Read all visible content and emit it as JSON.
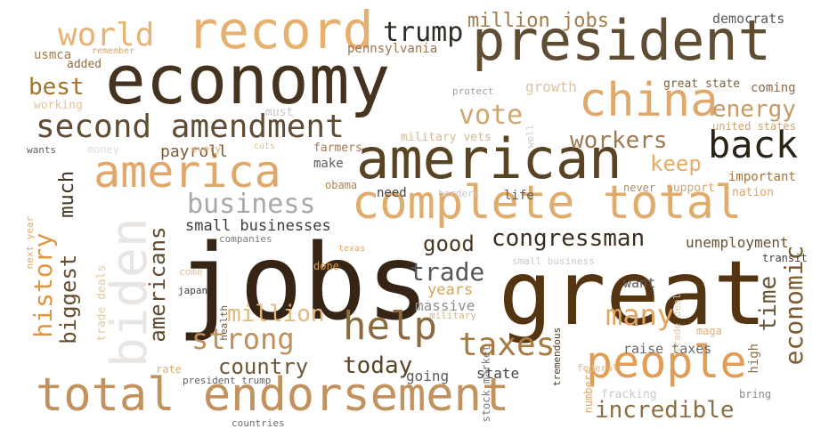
{
  "words": [
    {
      "t": "economy",
      "c": "#45321f"
    },
    {
      "t": "jobs",
      "c": "#362414"
    },
    {
      "t": "great",
      "c": "#553411"
    },
    {
      "t": "president",
      "c": "#5e4c33"
    },
    {
      "t": "american",
      "c": "#584322"
    },
    {
      "t": "complete total",
      "c": "#dfac6c"
    },
    {
      "t": "total endorsement",
      "c": "#c1915e"
    },
    {
      "t": "biden",
      "c": "#e8e5e2"
    },
    {
      "t": "record",
      "c": "#e6b16e"
    },
    {
      "t": "people",
      "c": "#e19c56"
    },
    {
      "t": "china",
      "c": "#e0a96b"
    },
    {
      "t": "america",
      "c": "#e1a66a"
    },
    {
      "t": "second amendment",
      "c": "#604b35"
    },
    {
      "t": "help",
      "c": "#8c6a40"
    },
    {
      "t": "back",
      "c": "#2d2418"
    },
    {
      "t": "world",
      "c": "#e7b377"
    },
    {
      "t": "history",
      "c": "#e2953a"
    },
    {
      "t": "biggest",
      "c": "#694c2e"
    },
    {
      "t": "taxes",
      "c": "#a77840"
    },
    {
      "t": "business",
      "c": "#a8a8a8"
    },
    {
      "t": "strong",
      "c": "#c08f59"
    },
    {
      "t": "economic",
      "c": "#7e5c33"
    },
    {
      "t": "incredible",
      "c": "#8b6e45"
    },
    {
      "t": "congressman",
      "c": "#3d2f1f"
    },
    {
      "t": "trump",
      "c": "#2f2b25"
    },
    {
      "t": "vote",
      "c": "#d3a46e"
    },
    {
      "t": "many",
      "c": "#e0a460"
    },
    {
      "t": "million",
      "c": "#e3ba7d"
    },
    {
      "t": "time",
      "c": "#6b5538"
    },
    {
      "t": "americans",
      "c": "#5f4930"
    },
    {
      "t": "much",
      "c": "#3f3220"
    },
    {
      "t": "trade",
      "c": "#555555"
    },
    {
      "t": "workers",
      "c": "#9b7a52"
    },
    {
      "t": "energy",
      "c": "#c69a61"
    },
    {
      "t": "best",
      "c": "#a4702e"
    },
    {
      "t": "keep",
      "c": "#e4ae66"
    },
    {
      "t": "today",
      "c": "#5c4326"
    },
    {
      "t": "country",
      "c": "#6f5537"
    },
    {
      "t": "million jobs",
      "c": "#a37c4d"
    },
    {
      "t": "good",
      "c": "#4a3925"
    },
    {
      "t": "small businesses",
      "c": "#3c3c3c"
    },
    {
      "t": "unemployment",
      "c": "#6a5035"
    },
    {
      "t": "payroll",
      "c": "#7c5c34"
    },
    {
      "t": "years",
      "c": "#d7a35f"
    },
    {
      "t": "growth",
      "c": "#dcc2a0"
    },
    {
      "t": "massive",
      "c": "#8f8f8f"
    },
    {
      "t": "state",
      "c": "#444444"
    },
    {
      "t": "going",
      "c": "#5b5b5b"
    },
    {
      "t": "raise taxes",
      "c": "#696969"
    },
    {
      "t": "want",
      "c": "#585858"
    },
    {
      "t": "usmca",
      "c": "#a07a4f"
    },
    {
      "t": "added",
      "c": "#8f6d45"
    },
    {
      "t": "working",
      "c": "#e3c498"
    },
    {
      "t": "pennsylvania",
      "c": "#9c7650"
    },
    {
      "t": "great state",
      "c": "#7c6140"
    },
    {
      "t": "coming",
      "c": "#8d6b44"
    },
    {
      "t": "military vets",
      "c": "#d6b994"
    },
    {
      "t": "democrats",
      "c": "#5b5b5b"
    },
    {
      "t": "united states",
      "c": "#d0a16d"
    },
    {
      "t": "important",
      "c": "#ad7430"
    },
    {
      "t": "support",
      "c": "#cfa46f"
    },
    {
      "t": "nation",
      "c": "#e2a45e"
    },
    {
      "t": "never",
      "c": "#a88d6a"
    },
    {
      "t": "life",
      "c": "#5a5a5a"
    },
    {
      "t": "need",
      "c": "#424242"
    },
    {
      "t": "make",
      "c": "#5c5c5c"
    },
    {
      "t": "obama",
      "c": "#b08553"
    },
    {
      "t": "farmers",
      "c": "#a37c55"
    },
    {
      "t": "protect",
      "c": "#a0a0a0"
    },
    {
      "t": "must",
      "c": "#c7c7c7"
    },
    {
      "t": "remember",
      "c": "#d0a773"
    },
    {
      "t": "wants",
      "c": "#5e5e5e"
    },
    {
      "t": "money",
      "c": "#dedede"
    },
    {
      "t": "every",
      "c": "#e0aa6a"
    },
    {
      "t": "cuts",
      "c": "#e0c08f"
    },
    {
      "t": "borders",
      "c": "#c6c6c6"
    },
    {
      "t": "next year",
      "c": "#e4ad66"
    },
    {
      "t": "trade deals",
      "c": "#eac79b"
    },
    {
      "t": "companies",
      "c": "#7a7a7a"
    },
    {
      "t": "texas",
      "c": "#e6a35e"
    },
    {
      "t": "done",
      "c": "#e09945"
    },
    {
      "t": "come",
      "c": "#e0c39a"
    },
    {
      "t": "japan",
      "c": "#3a3a3a"
    },
    {
      "t": "health",
      "c": "#6b5436"
    },
    {
      "t": "small business",
      "c": "#c8c8c8"
    },
    {
      "t": "stock market",
      "c": "#7a7a7a"
    },
    {
      "t": "military",
      "c": "#d8b888"
    },
    {
      "t": "tremendous",
      "c": "#4a3a28"
    },
    {
      "t": "numbers",
      "c": "#e0a667"
    },
    {
      "t": "trade deal",
      "c": "#dcc8ac"
    },
    {
      "t": "maga",
      "c": "#e5b06f"
    },
    {
      "t": "high",
      "c": "#8c6d48"
    },
    {
      "t": "transit",
      "c": "#3f3f3f"
    },
    {
      "t": "federal",
      "c": "#e3b580"
    },
    {
      "t": "fracking",
      "c": "#c9c9c9"
    },
    {
      "t": "bring",
      "c": "#8a8a8a"
    },
    {
      "t": "rate",
      "c": "#e0ad6c"
    },
    {
      "t": "president trump",
      "c": "#5f5f5f"
    },
    {
      "t": "countries",
      "c": "#6e6e6e"
    },
    {
      "t": "well",
      "c": "#c9c9c9"
    }
  ]
}
